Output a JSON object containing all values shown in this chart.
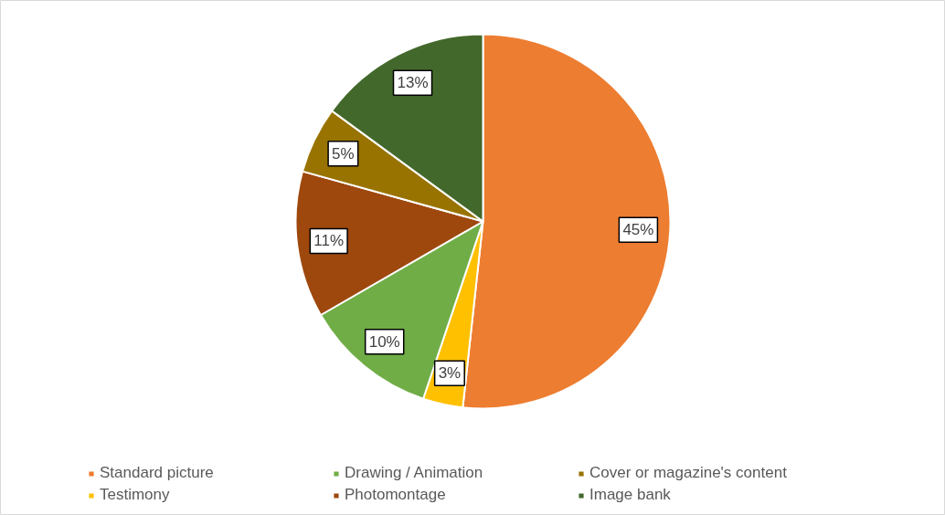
{
  "chart_data": {
    "type": "pie",
    "categories": [
      "Standard picture",
      "Testimony",
      "Drawing / Animation",
      "Photomontage",
      "Cover or magazine's content",
      "Image bank"
    ],
    "values": [
      45,
      3,
      10,
      11,
      5,
      13
    ],
    "colors": [
      "#ed7d31",
      "#ffc000",
      "#70ad47",
      "#9e480e",
      "#997300",
      "#43682b"
    ],
    "value_labels": [
      "45%",
      "3%",
      "10%",
      "11%",
      "5%",
      "13%"
    ],
    "legend": "bottom"
  }
}
